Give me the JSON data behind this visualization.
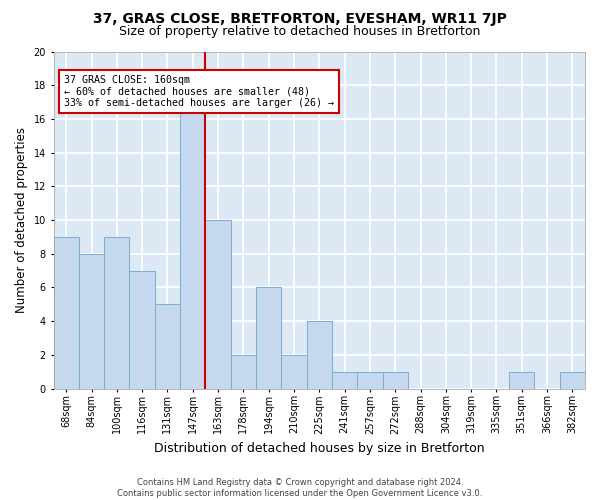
{
  "title": "37, GRAS CLOSE, BRETFORTON, EVESHAM, WR11 7JP",
  "subtitle": "Size of property relative to detached houses in Bretforton",
  "xlabel": "Distribution of detached houses by size in Bretforton",
  "ylabel": "Number of detached properties",
  "categories": [
    "68sqm",
    "84sqm",
    "100sqm",
    "116sqm",
    "131sqm",
    "147sqm",
    "163sqm",
    "178sqm",
    "194sqm",
    "210sqm",
    "225sqm",
    "241sqm",
    "257sqm",
    "272sqm",
    "288sqm",
    "304sqm",
    "319sqm",
    "335sqm",
    "351sqm",
    "366sqm",
    "382sqm"
  ],
  "values": [
    9,
    8,
    9,
    7,
    5,
    17,
    10,
    2,
    6,
    2,
    4,
    1,
    1,
    1,
    0,
    0,
    0,
    0,
    1,
    0,
    1
  ],
  "bar_color": "#c5d8ee",
  "bar_edge_color": "#7aadd4",
  "vline_color": "#cc0000",
  "vline_index": 6,
  "annotation_text": "37 GRAS CLOSE: 160sqm\n← 60% of detached houses are smaller (48)\n33% of semi-detached houses are larger (26) →",
  "annotation_box_color": "#cc0000",
  "ylim": [
    0,
    20
  ],
  "yticks": [
    0,
    2,
    4,
    6,
    8,
    10,
    12,
    14,
    16,
    18,
    20
  ],
  "background_color": "#dce9f5",
  "grid_color": "#ffffff",
  "title_fontsize": 10,
  "subtitle_fontsize": 9,
  "xlabel_fontsize": 9,
  "ylabel_fontsize": 8.5,
  "tick_fontsize": 7,
  "footer_text": "Contains HM Land Registry data © Crown copyright and database right 2024.\nContains public sector information licensed under the Open Government Licence v3.0."
}
